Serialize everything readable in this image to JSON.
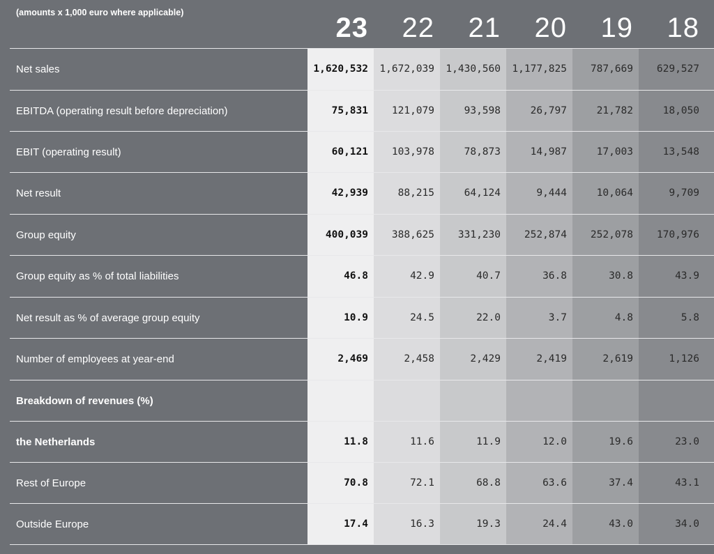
{
  "note": "(amounts x 1,000 euro where applicable)",
  "years": [
    "23",
    "22",
    "21",
    "20",
    "19",
    "18"
  ],
  "rows": [
    {
      "label": "Net sales",
      "bold": false,
      "values": [
        "1,620,532",
        "1,672,039",
        "1,430,560",
        "1,177,825",
        "787,669",
        "629,527"
      ]
    },
    {
      "label": "EBITDA (operating result before depreciation)",
      "bold": false,
      "values": [
        "75,831",
        "121,079",
        "93,598",
        "26,797",
        "21,782",
        "18,050"
      ]
    },
    {
      "label": "EBIT (operating result)",
      "bold": false,
      "values": [
        "60,121",
        "103,978",
        "78,873",
        "14,987",
        "17,003",
        "13,548"
      ]
    },
    {
      "label": "Net result",
      "bold": false,
      "values": [
        "42,939",
        "88,215",
        "64,124",
        "9,444",
        "10,064",
        "9,709"
      ]
    },
    {
      "label": "Group equity",
      "bold": false,
      "values": [
        "400,039",
        "388,625",
        "331,230",
        "252,874",
        "252,078",
        "170,976"
      ]
    },
    {
      "label": "Group equity as % of total liabilities",
      "bold": false,
      "values": [
        "46.8",
        "42.9",
        "40.7",
        "36.8",
        "30.8",
        "43.9"
      ]
    },
    {
      "label": "Net result as % of average group equity",
      "bold": false,
      "values": [
        "10.9",
        "24.5",
        "22.0",
        "3.7",
        "4.8",
        "5.8"
      ]
    },
    {
      "label": "Number of employees at year-end",
      "bold": false,
      "values": [
        "2,469",
        "2,458",
        "2,429",
        "2,419",
        "2,619",
        "1,126"
      ]
    },
    {
      "label": "Breakdown of revenues (%)",
      "bold": true,
      "values": [
        "",
        "",
        "",
        "",
        "",
        ""
      ]
    },
    {
      "label": "the Netherlands",
      "bold": true,
      "values": [
        "11.8",
        "11.6",
        "11.9",
        "12.0",
        "19.6",
        "23.0"
      ]
    },
    {
      "label": "Rest of Europe",
      "bold": false,
      "values": [
        "70.8",
        "72.1",
        "68.8",
        "63.6",
        "37.4",
        "43.1"
      ]
    },
    {
      "label": "Outside Europe",
      "bold": false,
      "values": [
        "17.4",
        "16.3",
        "19.3",
        "24.4",
        "43.0",
        "34.0"
      ]
    }
  ]
}
